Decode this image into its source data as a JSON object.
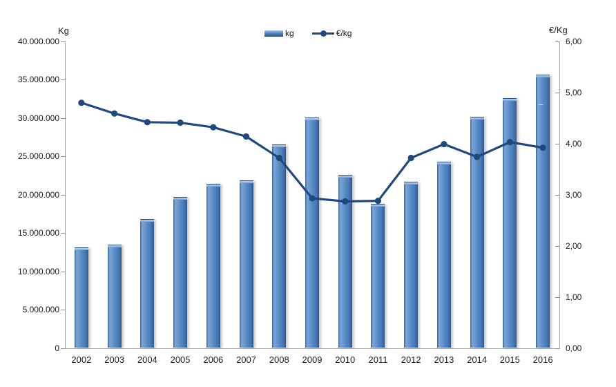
{
  "chart_data": {
    "type": "combo",
    "title": "",
    "categories": [
      "2002",
      "2003",
      "2004",
      "2005",
      "2006",
      "2007",
      "2008",
      "2009",
      "2010",
      "2011",
      "2012",
      "2013",
      "2014",
      "2015",
      "2016"
    ],
    "series": [
      {
        "name": "kg",
        "type": "bar",
        "axis": "left",
        "color": "#4f81bd",
        "values": [
          13100000,
          13500000,
          16800000,
          19700000,
          21400000,
          21900000,
          26600000,
          30100000,
          22600000,
          18800000,
          21700000,
          24300000,
          30200000,
          32600000,
          35700000
        ]
      },
      {
        "name": "€/kg",
        "type": "line",
        "axis": "right",
        "color": "#1f497d",
        "values": [
          4.8,
          4.59,
          4.42,
          4.41,
          4.32,
          4.14,
          3.72,
          2.93,
          2.87,
          2.88,
          3.72,
          3.99,
          3.74,
          4.03,
          3.92
        ]
      }
    ],
    "axes": {
      "left": {
        "title": "Kg",
        "min": 0,
        "max": 40000000,
        "step": 5000000,
        "tick_labels": [
          "40.000.000",
          "35.000.000",
          "30.000.000",
          "25.000.000",
          "20.000.000",
          "15.000.000",
          "10.000.000",
          "5.000.000",
          "0"
        ]
      },
      "right": {
        "title": "€/Kg",
        "min": 0,
        "max": 6,
        "step": 1,
        "tick_labels": [
          "6,00",
          "5,00",
          "4,00",
          "3,00",
          "2,00",
          "1,00",
          "0,00"
        ]
      }
    },
    "legend": {
      "position": "top-center",
      "items": [
        "kg",
        "€/kg"
      ]
    },
    "grid": false,
    "bar_annotation": {
      "category": "2016",
      "text": "~"
    }
  }
}
